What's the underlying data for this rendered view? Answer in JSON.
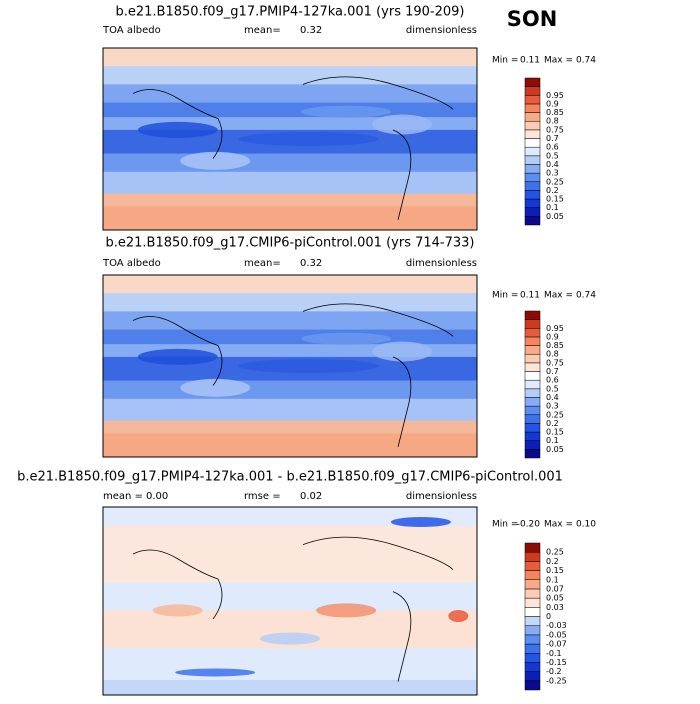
{
  "season": "SON",
  "panels": [
    {
      "title": "b.e21.B1850.f09_g17.PMIP4-127ka.001 (yrs 190-209)",
      "left_label": "TOA albedo",
      "stat_label": "mean=",
      "stat_value": "0.32",
      "units": "dimensionless",
      "min_label": "Min =",
      "min": "0.11",
      "max_label": "Max =",
      "max": "0.74",
      "colorbar_labels": [
        "0.05",
        "0.1",
        "0.15",
        "0.2",
        "0.25",
        "0.3",
        "0.4",
        "0.5",
        "0.6",
        "0.7",
        "0.75",
        "0.8",
        "0.85",
        "0.9",
        "0.95"
      ],
      "colorbar_colors": [
        "#0a0a8c",
        "#0b1fb8",
        "#1238d8",
        "#2255e6",
        "#3d72ec",
        "#5b8ef0",
        "#86adf4",
        "#b4cdf8",
        "#dfeafc",
        "#ffffff",
        "#fde5d8",
        "#fbcbb2",
        "#f8aa88",
        "#f4855f",
        "#e95c3b",
        "#cf3a1f",
        "#8e0c04"
      ]
    },
    {
      "title": "b.e21.B1850.f09_g17.CMIP6-piControl.001 (yrs 714-733)",
      "left_label": "TOA albedo",
      "stat_label": "mean=",
      "stat_value": "0.32",
      "units": "dimensionless",
      "min_label": "Min =",
      "min": "0.11",
      "max_label": "Max =",
      "max": "0.74",
      "colorbar_labels": [
        "0.05",
        "0.1",
        "0.15",
        "0.2",
        "0.25",
        "0.3",
        "0.4",
        "0.5",
        "0.6",
        "0.7",
        "0.75",
        "0.8",
        "0.85",
        "0.9",
        "0.95"
      ],
      "colorbar_colors": [
        "#0a0a8c",
        "#0b1fb8",
        "#1238d8",
        "#2255e6",
        "#3d72ec",
        "#5b8ef0",
        "#86adf4",
        "#b4cdf8",
        "#dfeafc",
        "#ffffff",
        "#fde5d8",
        "#fbcbb2",
        "#f8aa88",
        "#f4855f",
        "#e95c3b",
        "#cf3a1f",
        "#8e0c04"
      ]
    },
    {
      "title": "b.e21.B1850.f09_g17.PMIP4-127ka.001 - b.e21.B1850.f09_g17.CMIP6-piControl.001",
      "left_label": "mean =",
      "stat_label": "rmse =",
      "stat_value": "0.02",
      "left_value": "0.00",
      "units": "dimensionless",
      "min_label": "Min =",
      "min": "-0.20",
      "max_label": "Max =",
      "max": "0.10",
      "colorbar_labels": [
        "-0.25",
        "-0.2",
        "-0.15",
        "-0.1",
        "-0.07",
        "-0.05",
        "-0.03",
        "0",
        "0.03",
        "0.05",
        "0.07",
        "0.1",
        "0.15",
        "0.2",
        "0.25"
      ],
      "colorbar_colors": [
        "#0a0a8c",
        "#0b1fb8",
        "#1238d8",
        "#2255e6",
        "#3d72ec",
        "#5b8ef0",
        "#86adf4",
        "#c3d8f9",
        "#ffffff",
        "#fde5d8",
        "#fbcbb2",
        "#f8aa88",
        "#f4855f",
        "#e95c3b",
        "#cf3a1f",
        "#8e0c04"
      ]
    }
  ]
}
